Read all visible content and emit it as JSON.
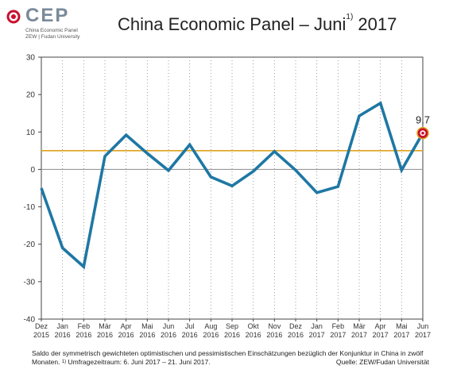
{
  "logo": {
    "name": "CEP",
    "line1": "China Economic Panel",
    "line2": "ZEW | Fudan University"
  },
  "title": {
    "main": "China Economic Panel – Juni",
    "sup": "1)",
    "year": "2017"
  },
  "footnote": {
    "text_line1": "Saldo der symmetrisch gewichteten optimistischen und pessimistischen Einschätzungen bezüglich der Konjunktur in China in zwölf",
    "text_line2_prefix": "Monaten. ",
    "sup": "1)",
    "text_line2_suffix": " Umfragezeitraum: 6. Juni 2017 – 21. Juni 2017.",
    "source": "Quelle: ZEW/Fudan Universität"
  },
  "colors": {
    "series": "#1f77a4",
    "average": "#e0a21b",
    "zero": "#999999",
    "marker": "#c8102e"
  },
  "chart_data": {
    "type": "line",
    "categories": [
      [
        "Dez",
        "2015"
      ],
      [
        "Jan",
        "2016"
      ],
      [
        "Feb",
        "2016"
      ],
      [
        "Mär",
        "2016"
      ],
      [
        "Apr",
        "2016"
      ],
      [
        "Mai",
        "2016"
      ],
      [
        "Jun",
        "2016"
      ],
      [
        "Jul",
        "2016"
      ],
      [
        "Aug",
        "2016"
      ],
      [
        "Sep",
        "2016"
      ],
      [
        "Okt",
        "2016"
      ],
      [
        "Nov",
        "2016"
      ],
      [
        "Dez",
        "2016"
      ],
      [
        "Jan",
        "2017"
      ],
      [
        "Feb",
        "2017"
      ],
      [
        "Mär",
        "2017"
      ],
      [
        "Apr",
        "2017"
      ],
      [
        "Mai",
        "2017"
      ],
      [
        "Jun",
        "2017"
      ]
    ],
    "series": [
      {
        "values": [
          -5,
          -21,
          -26,
          3.5,
          9.2,
          4.3,
          -0.3,
          6.6,
          -2,
          -4.4,
          -0.5,
          4.8,
          -0.2,
          -6.2,
          -4.6,
          14.3,
          17.7,
          -0.2,
          9.7
        ]
      }
    ],
    "reference_line": 5.0,
    "last_value_label": "9,7",
    "ylim": [
      -40,
      30
    ],
    "yticks": [
      "30",
      "20",
      "10",
      "0",
      "-10",
      "-20",
      "-30",
      "-40"
    ],
    "grid": "vertical dotted"
  }
}
